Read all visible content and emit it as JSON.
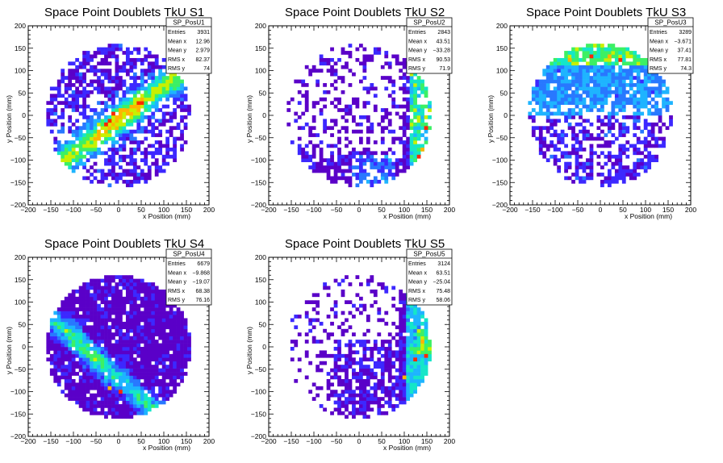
{
  "chart_data": [
    {
      "type": "heatmap",
      "title": "Space Point Doublets TkU S1",
      "xlabel": "x Position (mm)",
      "ylabel": "y Position (mm)",
      "xlim": [
        -200,
        200
      ],
      "ylim": [
        -200,
        200
      ],
      "xticks": [
        "−200",
        "−150",
        "−100",
        "−50",
        "0",
        "50",
        "100",
        "150",
        "200"
      ],
      "yticks": [
        "−200",
        "−150",
        "−100",
        "−50",
        "0",
        "50",
        "100",
        "150",
        "200"
      ],
      "stats": {
        "name": "SP_PosU1",
        "rows": [
          [
            "Entries",
            "3931"
          ],
          [
            "Mean x",
            "12.96"
          ],
          [
            "Mean y",
            "2.979"
          ],
          [
            "RMS x",
            "82.37"
          ],
          [
            "RMS y",
            "74"
          ]
        ]
      },
      "pattern": "diagonal band from lower-left to upper-right, hot spots near center",
      "radius_mm": 160
    },
    {
      "type": "heatmap",
      "title": "Space Point Doublets TkU S2",
      "xlabel": "x Position (mm)",
      "ylabel": "y Position (mm)",
      "xlim": [
        -200,
        200
      ],
      "ylim": [
        -200,
        200
      ],
      "xticks": [
        "−200",
        "−150",
        "−100",
        "−50",
        "0",
        "50",
        "100",
        "150",
        "200"
      ],
      "yticks": [
        "−200",
        "−150",
        "−100",
        "−50",
        "0",
        "50",
        "100",
        "150",
        "200"
      ],
      "stats": {
        "name": "SP_PosU2",
        "rows": [
          [
            "Entries",
            "2843"
          ],
          [
            "Mean x",
            "43.51"
          ],
          [
            "Mean y",
            "−33.28"
          ],
          [
            "RMS x",
            "90.53"
          ],
          [
            "RMS y",
            "71.9"
          ]
        ]
      },
      "pattern": "sparse, concentration at right edge x~150 and bottom",
      "radius_mm": 160
    },
    {
      "type": "heatmap",
      "title": "Space Point Doublets TkU S3",
      "xlabel": "x Position (mm)",
      "ylabel": "y Position (mm)",
      "xlim": [
        -200,
        200
      ],
      "ylim": [
        -200,
        200
      ],
      "xticks": [
        "−200",
        "−150",
        "−100",
        "−50",
        "0",
        "50",
        "100",
        "150",
        "200"
      ],
      "yticks": [
        "−200",
        "−150",
        "−100",
        "−50",
        "0",
        "50",
        "100",
        "150",
        "200"
      ],
      "stats": {
        "name": "SP_PosU3",
        "rows": [
          [
            "Entries",
            "3289"
          ],
          [
            "Mean x",
            "−3.671"
          ],
          [
            "Mean y",
            "37.41"
          ],
          [
            "RMS x",
            "77.81"
          ],
          [
            "RMS y",
            "74.3"
          ]
        ]
      },
      "pattern": "denser in upper half, hot spots near top",
      "radius_mm": 160
    },
    {
      "type": "heatmap",
      "title": "Space Point Doublets TkU S4",
      "xlabel": "x Position (mm)",
      "ylabel": "y Position (mm)",
      "xlim": [
        -200,
        200
      ],
      "ylim": [
        -200,
        200
      ],
      "xticks": [
        "−200",
        "−150",
        "−100",
        "−50",
        "0",
        "50",
        "100",
        "150",
        "200"
      ],
      "yticks": [
        "−200",
        "−150",
        "−100",
        "−50",
        "0",
        "50",
        "100",
        "150",
        "200"
      ],
      "stats": {
        "name": "SP_PosU4",
        "rows": [
          [
            "Entries",
            "6679"
          ],
          [
            "Mean x",
            "−9.868"
          ],
          [
            "Mean y",
            "−19.07"
          ],
          [
            "RMS x",
            "68.38"
          ],
          [
            "RMS y",
            "76.16"
          ]
        ]
      },
      "pattern": "dense filled disk, diagonal band from upper-left to lower-right with hot spot near (0,-100)",
      "radius_mm": 160
    },
    {
      "type": "heatmap",
      "title": "Space Point Doublets TkU S5",
      "xlabel": "x Position (mm)",
      "ylabel": "y Position (mm)",
      "xlim": [
        -200,
        200
      ],
      "ylim": [
        -200,
        200
      ],
      "xticks": [
        "−200",
        "−150",
        "−100",
        "−50",
        "0",
        "50",
        "100",
        "150",
        "200"
      ],
      "yticks": [
        "−200",
        "−150",
        "−100",
        "−50",
        "0",
        "50",
        "100",
        "150",
        "200"
      ],
      "stats": {
        "name": "SP_PosU5",
        "rows": [
          [
            "Entries",
            "3124"
          ],
          [
            "Mean x",
            "63.51"
          ],
          [
            "Mean y",
            "−25.04"
          ],
          [
            "RMS x",
            "75.48"
          ],
          [
            "RMS y",
            "58.06"
          ]
        ]
      },
      "pattern": "sparse upper-left, concentration at right edge x~150 and lower region",
      "radius_mm": 160
    }
  ],
  "palette": [
    "#5a00c8",
    "#3c28ff",
    "#2878ff",
    "#1eb4ff",
    "#14e6c8",
    "#3cf064",
    "#c8f000",
    "#ffb400",
    "#ff2800"
  ]
}
